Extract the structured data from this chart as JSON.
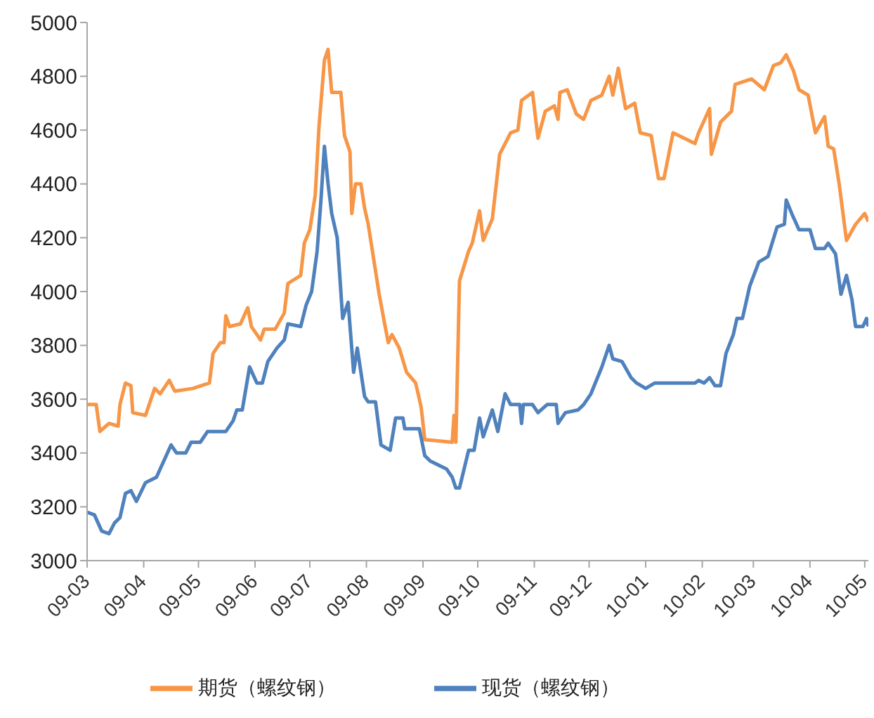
{
  "chart_data": {
    "type": "line",
    "xlim": [
      "2009-03-01",
      "2010-05-03"
    ],
    "xticks": [
      {
        "value": "2009-03-01",
        "label": "09-03"
      },
      {
        "value": "2009-04-01",
        "label": "09-04"
      },
      {
        "value": "2009-05-01",
        "label": "09-05"
      },
      {
        "value": "2009-06-01",
        "label": "09-06"
      },
      {
        "value": "2009-07-01",
        "label": "09-07"
      },
      {
        "value": "2009-08-01",
        "label": "09-08"
      },
      {
        "value": "2009-09-01",
        "label": "09-09"
      },
      {
        "value": "2009-10-01",
        "label": "09-10"
      },
      {
        "value": "2009-11-01",
        "label": "09-11"
      },
      {
        "value": "2009-12-01",
        "label": "09-12"
      },
      {
        "value": "2010-01-01",
        "label": "10-01"
      },
      {
        "value": "2010-02-01",
        "label": "10-02"
      },
      {
        "value": "2010-03-01",
        "label": "10-03"
      },
      {
        "value": "2010-04-01",
        "label": "10-04"
      },
      {
        "value": "2010-05-01",
        "label": "10-05"
      }
    ],
    "ylim": [
      3000,
      5000
    ],
    "yticks": [
      3000,
      3200,
      3400,
      3600,
      3800,
      4000,
      4200,
      4400,
      4600,
      4800,
      5000
    ],
    "grid": false,
    "legend": "bottom",
    "marker": "none",
    "line_style": "solid",
    "series": [
      {
        "name": "期货（螺纹钢）",
        "color": "#f79646",
        "x": [
          "2009-03-01",
          "2009-03-06",
          "2009-03-08",
          "2009-03-13",
          "2009-03-18",
          "2009-03-19",
          "2009-03-22",
          "2009-03-25",
          "2009-03-26",
          "2009-04-02",
          "2009-04-07",
          "2009-04-10",
          "2009-04-15",
          "2009-04-18",
          "2009-04-28",
          "2009-05-07",
          "2009-05-09",
          "2009-05-13",
          "2009-05-15",
          "2009-05-16",
          "2009-05-18",
          "2009-05-24",
          "2009-05-28",
          "2009-05-30",
          "2009-06-04",
          "2009-06-06",
          "2009-06-12",
          "2009-06-17",
          "2009-06-19",
          "2009-06-26",
          "2009-06-28",
          "2009-07-01",
          "2009-07-04",
          "2009-07-06",
          "2009-07-09",
          "2009-07-11",
          "2009-07-13",
          "2009-07-18",
          "2009-07-20",
          "2009-07-23",
          "2009-07-24",
          "2009-07-26",
          "2009-07-29",
          "2009-07-31",
          "2009-08-02",
          "2009-08-08",
          "2009-08-11",
          "2009-08-13",
          "2009-08-15",
          "2009-08-19",
          "2009-08-23",
          "2009-08-28",
          "2009-08-31",
          "2009-09-02",
          "2009-09-17",
          "2009-09-18",
          "2009-09-19",
          "2009-09-21",
          "2009-09-26",
          "2009-09-28",
          "2009-10-02",
          "2009-10-04",
          "2009-10-09",
          "2009-10-13",
          "2009-10-19",
          "2009-10-23",
          "2009-10-25",
          "2009-10-31",
          "2009-11-03",
          "2009-11-07",
          "2009-11-12",
          "2009-11-14",
          "2009-11-15",
          "2009-11-19",
          "2009-11-24",
          "2009-11-28",
          "2009-12-02",
          "2009-12-08",
          "2009-12-12",
          "2009-12-14",
          "2009-12-17",
          "2009-12-21",
          "2009-12-26",
          "2009-12-29",
          "2010-01-04",
          "2010-01-08",
          "2010-01-11",
          "2010-01-16",
          "2010-01-28",
          "2010-01-30",
          "2010-02-05",
          "2010-02-06",
          "2010-02-11",
          "2010-02-17",
          "2010-02-19",
          "2010-02-28",
          "2010-03-07",
          "2010-03-12",
          "2010-03-16",
          "2010-03-19",
          "2010-03-23",
          "2010-03-26",
          "2010-03-31",
          "2010-04-04",
          "2010-04-09",
          "2010-04-11",
          "2010-04-14",
          "2010-04-17",
          "2010-04-21",
          "2010-04-26",
          "2010-05-01",
          "2010-05-03"
        ],
        "values": [
          3580,
          3580,
          3480,
          3510,
          3500,
          3580,
          3660,
          3650,
          3550,
          3540,
          3640,
          3620,
          3670,
          3630,
          3640,
          3660,
          3770,
          3810,
          3810,
          3910,
          3870,
          3880,
          3940,
          3870,
          3820,
          3860,
          3860,
          3920,
          4030,
          4060,
          4180,
          4230,
          4360,
          4610,
          4860,
          4900,
          4740,
          4740,
          4580,
          4520,
          4290,
          4400,
          4400,
          4310,
          4250,
          3990,
          3880,
          3810,
          3840,
          3790,
          3700,
          3660,
          3570,
          3450,
          3440,
          3540,
          3440,
          4040,
          4150,
          4180,
          4300,
          4190,
          4270,
          4510,
          4590,
          4600,
          4710,
          4740,
          4570,
          4670,
          4690,
          4640,
          4740,
          4750,
          4660,
          4640,
          4710,
          4730,
          4800,
          4730,
          4830,
          4680,
          4700,
          4590,
          4580,
          4420,
          4420,
          4590,
          4550,
          4590,
          4680,
          4510,
          4630,
          4670,
          4770,
          4790,
          4750,
          4840,
          4850,
          4880,
          4820,
          4750,
          4730,
          4590,
          4650,
          4540,
          4530,
          4400,
          4190,
          4250,
          4290,
          4260
        ]
      },
      {
        "name": "现货（螺纹钢）",
        "color": "#4f81bd",
        "x": [
          "2009-03-01",
          "2009-03-05",
          "2009-03-09",
          "2009-03-13",
          "2009-03-16",
          "2009-03-19",
          "2009-03-22",
          "2009-03-25",
          "2009-03-28",
          "2009-04-02",
          "2009-04-08",
          "2009-04-16",
          "2009-04-19",
          "2009-04-24",
          "2009-04-27",
          "2009-05-02",
          "2009-05-06",
          "2009-05-16",
          "2009-05-20",
          "2009-05-22",
          "2009-05-25",
          "2009-05-29",
          "2009-06-02",
          "2009-06-05",
          "2009-06-08",
          "2009-06-13",
          "2009-06-17",
          "2009-06-19",
          "2009-06-26",
          "2009-06-29",
          "2009-07-02",
          "2009-07-05",
          "2009-07-07",
          "2009-07-09",
          "2009-07-11",
          "2009-07-13",
          "2009-07-16",
          "2009-07-19",
          "2009-07-22",
          "2009-07-25",
          "2009-07-27",
          "2009-07-31",
          "2009-08-02",
          "2009-08-06",
          "2009-08-09",
          "2009-08-14",
          "2009-08-17",
          "2009-08-21",
          "2009-08-22",
          "2009-08-30",
          "2009-09-02",
          "2009-09-05",
          "2009-09-14",
          "2009-09-17",
          "2009-09-19",
          "2009-09-21",
          "2009-09-26",
          "2009-09-29",
          "2009-10-02",
          "2009-10-04",
          "2009-10-09",
          "2009-10-12",
          "2009-10-16",
          "2009-10-19",
          "2009-10-24",
          "2009-10-25",
          "2009-10-26",
          "2009-10-31",
          "2009-11-03",
          "2009-11-08",
          "2009-11-13",
          "2009-11-14",
          "2009-11-18",
          "2009-11-25",
          "2009-11-28",
          "2009-12-02",
          "2009-12-08",
          "2009-12-12",
          "2009-12-14",
          "2009-12-19",
          "2009-12-24",
          "2009-12-27",
          "2010-01-01",
          "2010-01-06",
          "2010-01-28",
          "2010-01-30",
          "2010-02-02",
          "2010-02-05",
          "2010-02-08",
          "2010-02-11",
          "2010-02-14",
          "2010-02-18",
          "2010-02-20",
          "2010-02-23",
          "2010-02-27",
          "2010-03-04",
          "2010-03-09",
          "2010-03-14",
          "2010-03-18",
          "2010-03-19",
          "2010-03-22",
          "2010-03-26",
          "2010-04-01",
          "2010-04-04",
          "2010-04-09",
          "2010-04-11",
          "2010-04-15",
          "2010-04-18",
          "2010-04-21",
          "2010-04-24",
          "2010-04-26",
          "2010-04-30",
          "2010-05-02",
          "2010-05-03"
        ],
        "values": [
          3180,
          3170,
          3110,
          3100,
          3140,
          3160,
          3250,
          3260,
          3220,
          3290,
          3310,
          3430,
          3400,
          3400,
          3440,
          3440,
          3480,
          3480,
          3520,
          3560,
          3560,
          3720,
          3660,
          3660,
          3740,
          3790,
          3820,
          3880,
          3870,
          3950,
          4000,
          4150,
          4330,
          4540,
          4400,
          4290,
          4200,
          3900,
          3960,
          3700,
          3790,
          3610,
          3590,
          3590,
          3430,
          3410,
          3530,
          3530,
          3490,
          3490,
          3390,
          3370,
          3340,
          3310,
          3270,
          3270,
          3410,
          3410,
          3530,
          3460,
          3560,
          3480,
          3620,
          3580,
          3580,
          3510,
          3580,
          3580,
          3550,
          3580,
          3580,
          3510,
          3550,
          3560,
          3580,
          3620,
          3720,
          3800,
          3750,
          3740,
          3680,
          3660,
          3640,
          3660,
          3660,
          3670,
          3660,
          3680,
          3650,
          3650,
          3770,
          3840,
          3900,
          3900,
          4020,
          4110,
          4130,
          4240,
          4250,
          4340,
          4290,
          4230,
          4230,
          4160,
          4160,
          4180,
          4140,
          3990,
          4060,
          3970,
          3870,
          3870,
          3900,
          3870
        ]
      }
    ]
  }
}
